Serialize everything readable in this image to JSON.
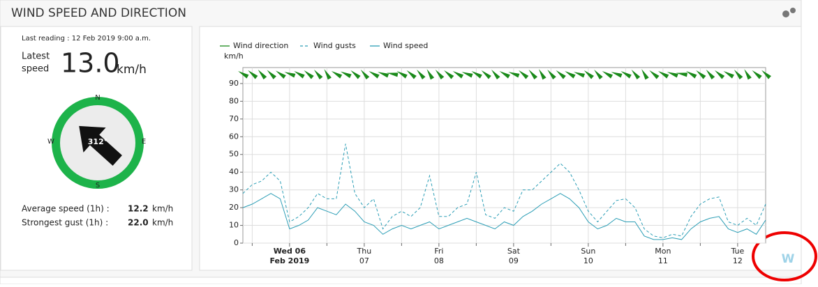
{
  "header": {
    "title": "WIND SPEED AND DIRECTION"
  },
  "summary": {
    "last_reading": "Last reading : 12 Feb 2019 9:00 a.m.",
    "latest_label_1": "Latest",
    "latest_label_2": "speed",
    "latest_value": "13.0",
    "unit": "km/h",
    "compass": {
      "n": "N",
      "e": "E",
      "s": "S",
      "w": "W",
      "direction": 312,
      "direction_label": "312°"
    },
    "average_label": "Average speed (1h) :",
    "average_value": "12.2",
    "gust_label": "Strongest gust (1h) :",
    "gust_value": "22.0"
  },
  "badge": "W",
  "chart_data": {
    "type": "line",
    "y_label": "km/h",
    "xlim": [
      "2019-02-05T09:00",
      "2019-02-12T09:00"
    ],
    "ylim": [
      0,
      99
    ],
    "yticks": [
      0,
      10,
      20,
      30,
      40,
      50,
      60,
      70,
      80,
      90
    ],
    "xticks": [
      {
        "value": "2019-02-06T00:00",
        "label": "Wed 06",
        "date": "Feb 2019"
      },
      {
        "value": "2019-02-07T00:00",
        "label": "Thu",
        "date": "07"
      },
      {
        "value": "2019-02-08T00:00",
        "label": "Fri",
        "date": "08"
      },
      {
        "value": "2019-02-09T00:00",
        "label": "Sat",
        "date": "09"
      },
      {
        "value": "2019-02-10T00:00",
        "label": "Sun",
        "date": "10"
      },
      {
        "value": "2019-02-11T00:00",
        "label": "Mon",
        "date": "11"
      },
      {
        "value": "2019-02-12T00:00",
        "label": "Tue",
        "date": "12"
      }
    ],
    "xminorticks": [
      "2019-02-05T12:00",
      "2019-02-06T12:00",
      "2019-02-07T12:00",
      "2019-02-08T12:00",
      "2019-02-09T12:00",
      "2019-02-10T12:00",
      "2019-02-11T12:00"
    ],
    "grid": true,
    "x": [
      "2019-02-05T09:00",
      "2019-02-05T12:00",
      "2019-02-05T15:00",
      "2019-02-05T18:00",
      "2019-02-05T21:00",
      "2019-02-06T00:00",
      "2019-02-06T03:00",
      "2019-02-06T06:00",
      "2019-02-06T09:00",
      "2019-02-06T12:00",
      "2019-02-06T15:00",
      "2019-02-06T18:00",
      "2019-02-06T21:00",
      "2019-02-07T00:00",
      "2019-02-07T03:00",
      "2019-02-07T06:00",
      "2019-02-07T09:00",
      "2019-02-07T12:00",
      "2019-02-07T15:00",
      "2019-02-07T18:00",
      "2019-02-07T21:00",
      "2019-02-08T00:00",
      "2019-02-08T03:00",
      "2019-02-08T06:00",
      "2019-02-08T09:00",
      "2019-02-08T12:00",
      "2019-02-08T15:00",
      "2019-02-08T18:00",
      "2019-02-08T21:00",
      "2019-02-09T00:00",
      "2019-02-09T03:00",
      "2019-02-09T06:00",
      "2019-02-09T09:00",
      "2019-02-09T12:00",
      "2019-02-09T15:00",
      "2019-02-09T18:00",
      "2019-02-09T21:00",
      "2019-02-10T00:00",
      "2019-02-10T03:00",
      "2019-02-10T06:00",
      "2019-02-10T09:00",
      "2019-02-10T12:00",
      "2019-02-10T15:00",
      "2019-02-10T18:00",
      "2019-02-10T21:00",
      "2019-02-11T00:00",
      "2019-02-11T03:00",
      "2019-02-11T06:00",
      "2019-02-11T09:00",
      "2019-02-11T12:00",
      "2019-02-11T15:00",
      "2019-02-11T18:00",
      "2019-02-11T21:00",
      "2019-02-12T00:00",
      "2019-02-12T03:00",
      "2019-02-12T06:00",
      "2019-02-12T09:00"
    ],
    "series": [
      {
        "name": "Wind direction",
        "color": "#1a8a1a",
        "kind": "direction",
        "values": [
          300,
          310,
          320,
          315,
          305,
          290,
          300,
          310,
          320,
          330,
          300,
          295,
          310,
          320,
          300,
          290,
          280,
          300,
          310,
          320,
          330,
          320,
          310,
          300,
          290,
          300,
          310,
          320,
          300,
          290,
          310,
          320,
          330,
          320,
          310,
          300,
          290,
          310,
          320,
          300,
          290,
          300,
          320,
          330,
          310,
          300,
          290,
          280,
          300,
          310,
          320,
          310,
          300,
          320,
          330,
          310,
          312
        ]
      },
      {
        "name": "Wind gusts",
        "color": "#2a9db5",
        "dash": true,
        "values": [
          28,
          33,
          35,
          40,
          35,
          12,
          15,
          20,
          28,
          25,
          25,
          56,
          28,
          20,
          25,
          8,
          15,
          18,
          15,
          20,
          38,
          15,
          15,
          20,
          22,
          40,
          16,
          14,
          20,
          18,
          30,
          30,
          35,
          40,
          45,
          40,
          30,
          18,
          12,
          18,
          24,
          25,
          20,
          8,
          4,
          3,
          5,
          4,
          15,
          22,
          25,
          26,
          12,
          10,
          14,
          10,
          22
        ]
      },
      {
        "name": "Wind speed",
        "color": "#2a9db5",
        "values": [
          20,
          22,
          25,
          28,
          25,
          8,
          10,
          13,
          20,
          18,
          16,
          22,
          18,
          12,
          10,
          5,
          8,
          10,
          8,
          10,
          12,
          8,
          10,
          12,
          14,
          12,
          10,
          8,
          12,
          10,
          15,
          18,
          22,
          25,
          28,
          25,
          20,
          12,
          8,
          10,
          14,
          12,
          12,
          4,
          2,
          2,
          3,
          2,
          8,
          12,
          14,
          15,
          8,
          6,
          8,
          5,
          13
        ]
      }
    ]
  }
}
